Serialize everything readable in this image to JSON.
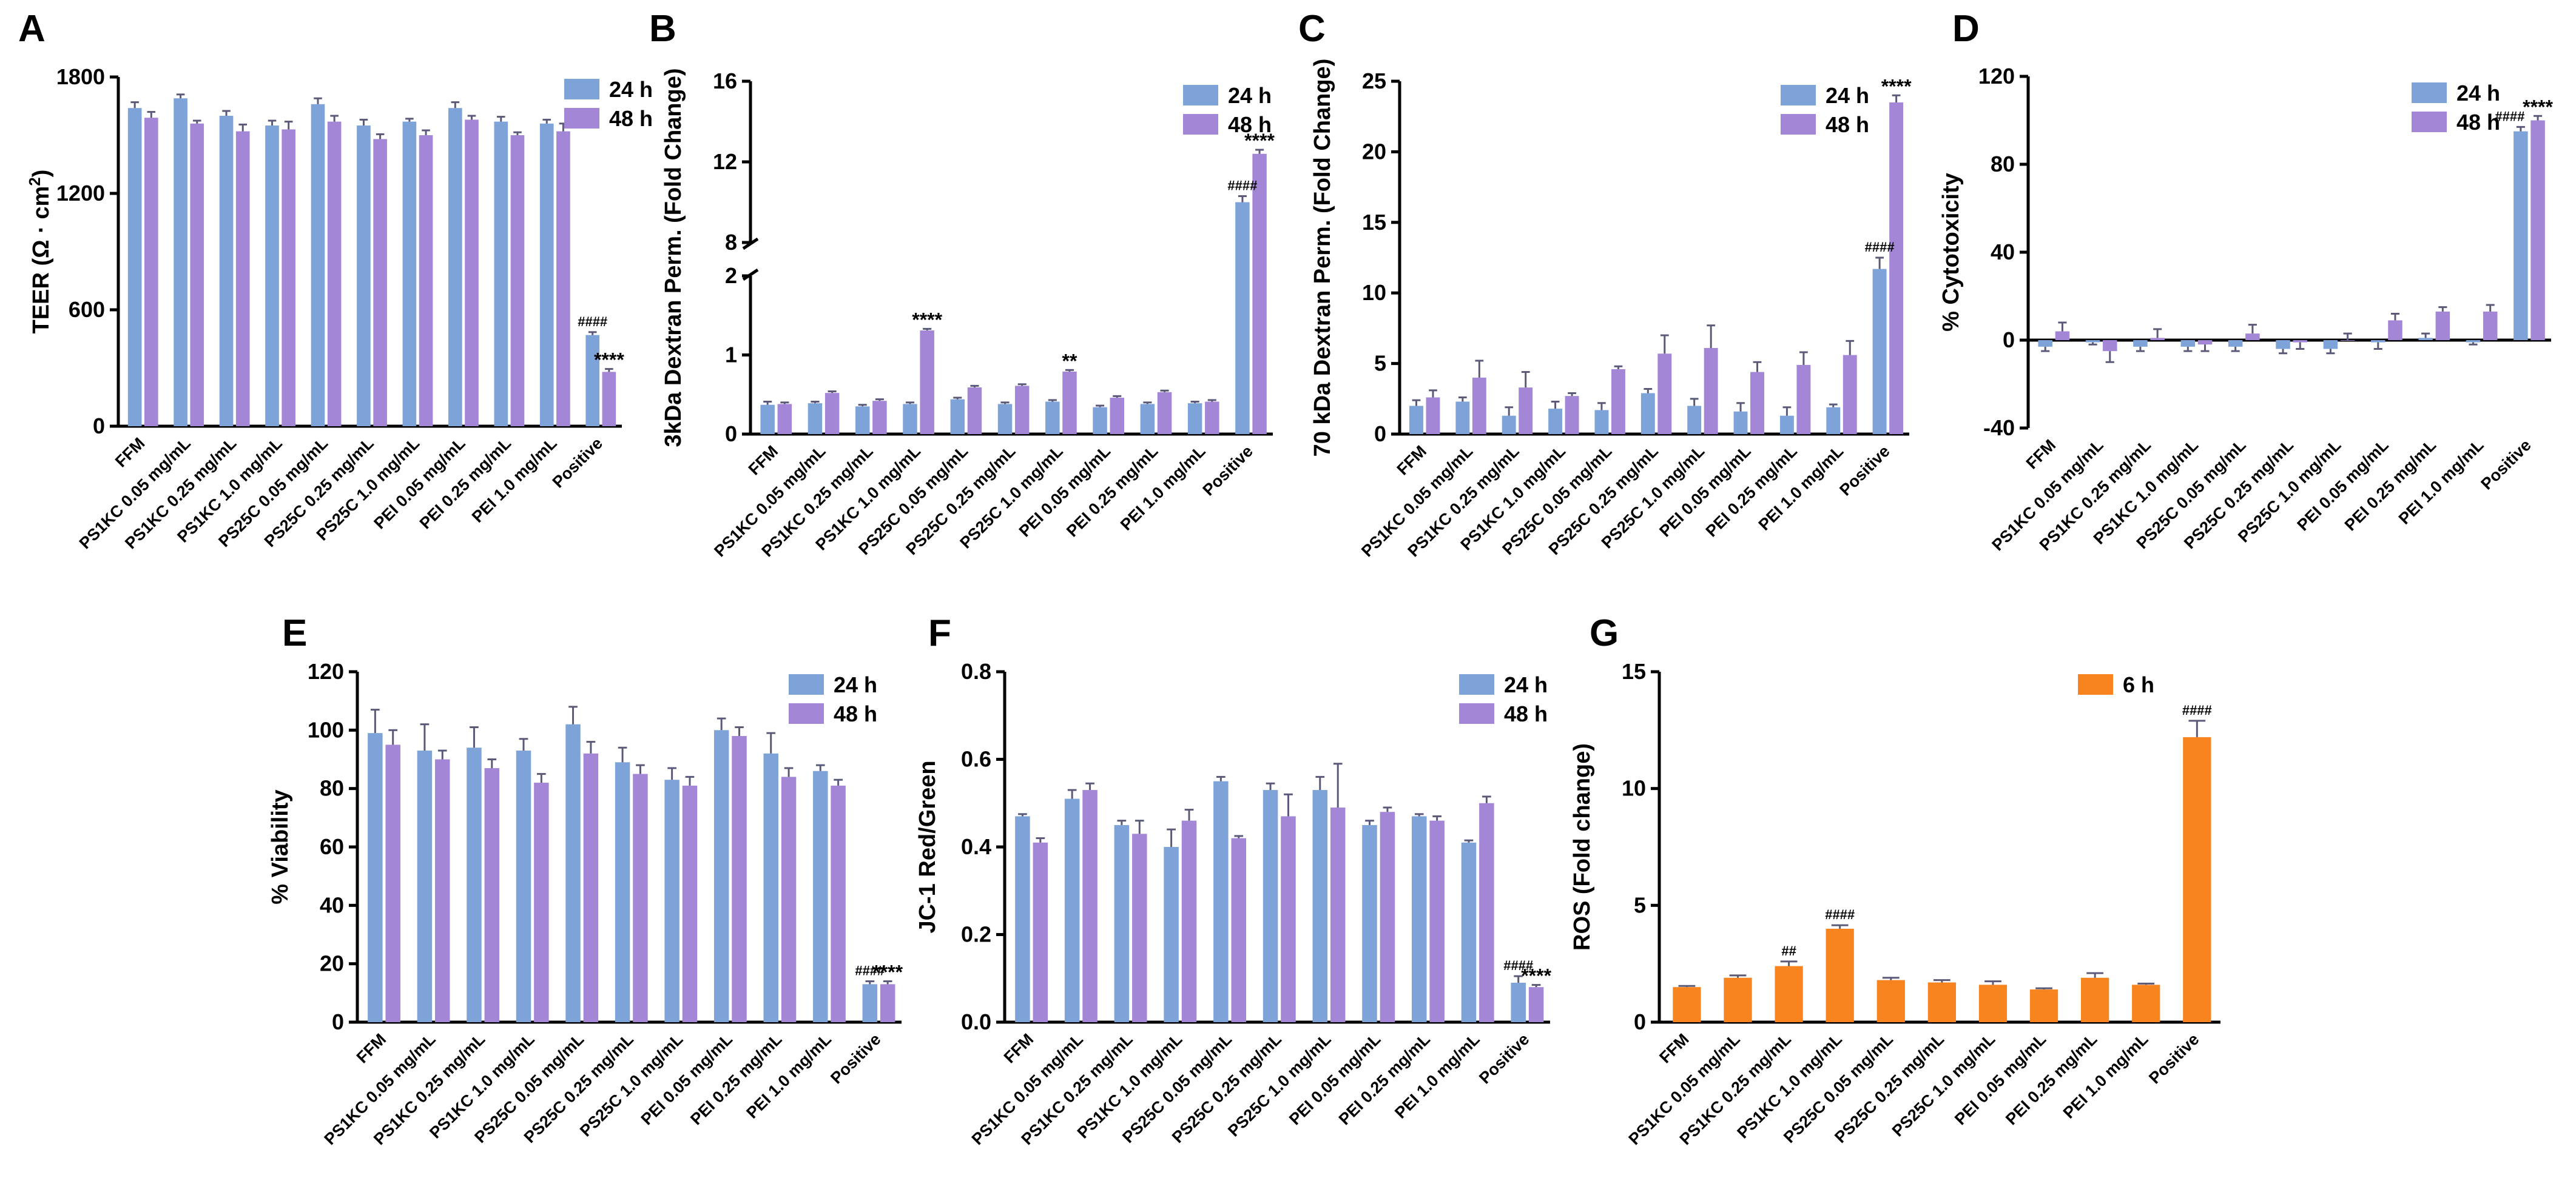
{
  "colors": {
    "h24": "#7ea3d9",
    "h48": "#a486d6",
    "h6": "#f7841e"
  },
  "chart_data": [
    {
      "panel": "A",
      "type": "bar",
      "ylabel": "TEER (Ω · cm²)",
      "ylim": [
        0,
        1800
      ],
      "yticks": [
        0,
        600,
        1200,
        1800
      ],
      "categories": [
        "FFM",
        "PS1KC 0.05 mg/mL",
        "PS1KC 0.25 mg/mL",
        "PS1KC 1.0 mg/mL",
        "PS25C 0.05 mg/mL",
        "PS25C 0.25 mg/mL",
        "PS25C 1.0 mg/mL",
        "PEI 0.05 mg/mL",
        "PEI 0.25 mg/mL",
        "PEI 1.0 mg/mL",
        "Positive"
      ],
      "series": [
        {
          "name": "24 h",
          "values": [
            1640,
            1690,
            1600,
            1550,
            1660,
            1550,
            1570,
            1640,
            1570,
            1560,
            470
          ],
          "errors": [
            30,
            20,
            25,
            25,
            30,
            30,
            15,
            30,
            25,
            20,
            15
          ]
        },
        {
          "name": "48 h",
          "values": [
            1590,
            1560,
            1520,
            1530,
            1570,
            1480,
            1500,
            1580,
            1500,
            1520,
            280
          ],
          "errors": [
            30,
            15,
            35,
            40,
            30,
            25,
            25,
            20,
            15,
            40,
            15
          ]
        }
      ],
      "annotations": [
        {
          "category": 10,
          "series": 0,
          "text": "####"
        },
        {
          "category": 10,
          "series": 1,
          "text": "****"
        }
      ],
      "legend": "top-right"
    },
    {
      "panel": "B",
      "type": "bar",
      "ylabel": "3kDa Dextran Perm. (Fold Change)",
      "ylim": [
        0,
        16
      ],
      "yticks": [
        0,
        1,
        2,
        8,
        12,
        16
      ],
      "axis_break": [
        2,
        8
      ],
      "categories": [
        "FFM",
        "PS1KC 0.05 mg/mL",
        "PS1KC 0.25 mg/mL",
        "PS1KC 1.0 mg/mL",
        "PS25C 0.05 mg/mL",
        "PS25C 0.25 mg/mL",
        "PS25C 1.0 mg/mL",
        "PEI 0.05 mg/mL",
        "PEI 0.25 mg/mL",
        "PEI 1.0 mg/mL",
        "Positive"
      ],
      "series": [
        {
          "name": "24 h",
          "values": [
            0.37,
            0.39,
            0.35,
            0.38,
            0.44,
            0.38,
            0.41,
            0.34,
            0.38,
            0.39,
            10.0
          ],
          "errors": [
            0.04,
            0.02,
            0.02,
            0.02,
            0.02,
            0.02,
            0.02,
            0.02,
            0.02,
            0.02,
            0.3
          ]
        },
        {
          "name": "48 h",
          "values": [
            0.38,
            0.52,
            0.42,
            1.31,
            0.59,
            0.61,
            0.79,
            0.46,
            0.53,
            0.41,
            12.4
          ],
          "errors": [
            0.02,
            0.02,
            0.02,
            0.02,
            0.02,
            0.02,
            0.02,
            0.02,
            0.02,
            0.02,
            0.2
          ]
        }
      ],
      "annotations": [
        {
          "category": 3,
          "series": 1,
          "text": "****"
        },
        {
          "category": 6,
          "series": 1,
          "text": "**"
        },
        {
          "category": 10,
          "series": 0,
          "text": "####"
        },
        {
          "category": 10,
          "series": 1,
          "text": "****"
        }
      ],
      "legend": "top-right"
    },
    {
      "panel": "C",
      "type": "bar",
      "ylabel": "70 kDa Dextran Perm. (Fold Change)",
      "ylim": [
        0,
        25
      ],
      "yticks": [
        0,
        5,
        10,
        15,
        20,
        25
      ],
      "categories": [
        "FFM",
        "PS1KC 0.05 mg/mL",
        "PS1KC 0.25 mg/mL",
        "PS1KC 1.0 mg/mL",
        "PS25C 0.05 mg/mL",
        "PS25C 0.25 mg/mL",
        "PS25C 1.0 mg/mL",
        "PEI 0.05 mg/mL",
        "PEI 0.25 mg/mL",
        "PEI 1.0 mg/mL",
        "Positive"
      ],
      "series": [
        {
          "name": "24 h",
          "values": [
            2.0,
            2.3,
            1.3,
            1.8,
            1.7,
            2.9,
            2.0,
            1.6,
            1.3,
            1.9,
            11.7
          ],
          "errors": [
            0.4,
            0.3,
            0.6,
            0.5,
            0.5,
            0.3,
            0.5,
            0.6,
            0.6,
            0.2,
            0.8
          ]
        },
        {
          "name": "48 h",
          "values": [
            2.6,
            4.0,
            3.3,
            2.7,
            4.6,
            5.7,
            6.1,
            4.4,
            4.9,
            5.6,
            23.5
          ],
          "errors": [
            0.5,
            1.2,
            1.1,
            0.2,
            0.2,
            1.3,
            1.6,
            0.7,
            0.9,
            1.0,
            0.5
          ]
        }
      ],
      "annotations": [
        {
          "category": 10,
          "series": 0,
          "text": "####"
        },
        {
          "category": 10,
          "series": 1,
          "text": "****"
        }
      ],
      "legend": "top-right"
    },
    {
      "panel": "D",
      "type": "bar",
      "ylabel": "% Cytotoxicity",
      "ylim": [
        -40,
        120
      ],
      "yticks": [
        -40,
        0,
        40,
        80,
        120
      ],
      "categories": [
        "FFM",
        "PS1KC 0.05 mg/mL",
        "PS1KC 0.25 mg/mL",
        "PS1KC 1.0 mg/mL",
        "PS25C 0.05 mg/mL",
        "PS25C 0.25 mg/mL",
        "PS25C 1.0 mg/mL",
        "PEI 0.05 mg/mL",
        "PEI 0.25 mg/mL",
        "PEI 1.0 mg/mL",
        "Positive"
      ],
      "series": [
        {
          "name": "24 h",
          "values": [
            -3,
            -1,
            -3,
            -3,
            -3,
            -4,
            -4,
            -1,
            1,
            -1,
            95
          ],
          "errors": [
            2,
            1,
            2,
            2,
            2,
            2,
            2,
            3,
            2,
            1,
            2
          ]
        },
        {
          "name": "48 h",
          "values": [
            4,
            -5,
            1,
            -2,
            3,
            -1,
            0,
            9,
            13,
            13,
            100
          ],
          "errors": [
            4,
            5,
            4,
            3,
            4,
            3,
            3,
            3,
            2,
            3,
            2
          ]
        }
      ],
      "annotations": [
        {
          "category": 10,
          "series": 0,
          "text": "####"
        },
        {
          "category": 10,
          "series": 1,
          "text": "****"
        }
      ],
      "legend": "top-right"
    },
    {
      "panel": "E",
      "type": "bar",
      "ylabel": "% Viability",
      "ylim": [
        0,
        120
      ],
      "yticks": [
        0,
        20,
        40,
        60,
        80,
        100,
        120
      ],
      "categories": [
        "FFM",
        "PS1KC 0.05 mg/mL",
        "PS1KC 0.25 mg/mL",
        "PS1KC 1.0 mg/mL",
        "PS25C 0.05 mg/mL",
        "PS25C 0.25 mg/mL",
        "PS25C 1.0 mg/mL",
        "PEI 0.05 mg/mL",
        "PEI 0.25 mg/mL",
        "PEI 1.0 mg/mL",
        "Positive"
      ],
      "series": [
        {
          "name": "24 h",
          "values": [
            99,
            93,
            94,
            93,
            102,
            89,
            83,
            100,
            92,
            86,
            13
          ],
          "errors": [
            8,
            9,
            7,
            4,
            6,
            5,
            4,
            4,
            7,
            2,
            1
          ]
        },
        {
          "name": "48 h",
          "values": [
            95,
            90,
            87,
            82,
            92,
            85,
            81,
            98,
            84,
            81,
            13
          ],
          "errors": [
            5,
            3,
            3,
            3,
            4,
            3,
            3,
            3,
            3,
            2,
            1
          ]
        }
      ],
      "annotations": [
        {
          "category": 10,
          "series": 0,
          "text": "####"
        },
        {
          "category": 10,
          "series": 1,
          "text": "****"
        }
      ],
      "legend": "top-right"
    },
    {
      "panel": "F",
      "type": "bar",
      "ylabel": "JC-1 Red/Green",
      "ylim": [
        0,
        0.8
      ],
      "yticks": [
        0.0,
        0.2,
        0.4,
        0.6,
        0.8
      ],
      "categories": [
        "FFM",
        "PS1KC 0.05 mg/mL",
        "PS1KC 0.25 mg/mL",
        "PS1KC 1.0 mg/mL",
        "PS25C 0.05 mg/mL",
        "PS25C 0.25 mg/mL",
        "PS25C 1.0 mg/mL",
        "PEI 0.05 mg/mL",
        "PEI 0.25 mg/mL",
        "PEI 1.0 mg/mL",
        "Positive"
      ],
      "series": [
        {
          "name": "24 h",
          "values": [
            0.47,
            0.51,
            0.45,
            0.4,
            0.55,
            0.53,
            0.53,
            0.45,
            0.47,
            0.41,
            0.09
          ],
          "errors": [
            0.005,
            0.02,
            0.01,
            0.04,
            0.01,
            0.015,
            0.03,
            0.01,
            0.005,
            0.005,
            0.015
          ]
        },
        {
          "name": "48 h",
          "values": [
            0.41,
            0.53,
            0.43,
            0.46,
            0.42,
            0.47,
            0.49,
            0.48,
            0.46,
            0.5,
            0.08
          ],
          "errors": [
            0.01,
            0.015,
            0.03,
            0.025,
            0.005,
            0.05,
            0.1,
            0.01,
            0.01,
            0.015,
            0.005
          ]
        }
      ],
      "annotations": [
        {
          "category": 10,
          "series": 0,
          "text": "####"
        },
        {
          "category": 10,
          "series": 1,
          "text": "****"
        }
      ],
      "legend": "top-right"
    },
    {
      "panel": "G",
      "type": "bar",
      "ylabel": "ROS (Fold change)",
      "ylim": [
        0,
        15
      ],
      "yticks": [
        0,
        5,
        10,
        15
      ],
      "categories": [
        "FFM",
        "PS1KC 0.05 mg/mL",
        "PS1KC 0.25 mg/mL",
        "PS1KC 1.0 mg/mL",
        "PS25C 0.05 mg/mL",
        "PS25C 0.25 mg/mL",
        "PS25C 1.0 mg/mL",
        "PEI 0.05 mg/mL",
        "PEI 0.25 mg/mL",
        "PEI 1.0 mg/mL",
        "Positive"
      ],
      "series": [
        {
          "name": "6 h",
          "values": [
            1.5,
            1.9,
            2.4,
            4.0,
            1.8,
            1.7,
            1.6,
            1.4,
            1.9,
            1.6,
            12.2
          ],
          "errors": [
            0.05,
            0.1,
            0.2,
            0.15,
            0.1,
            0.1,
            0.15,
            0.05,
            0.2,
            0.05,
            0.7
          ]
        }
      ],
      "annotations": [
        {
          "category": 2,
          "series": 0,
          "text": "##"
        },
        {
          "category": 3,
          "series": 0,
          "text": "####"
        },
        {
          "category": 10,
          "series": 0,
          "text": "####"
        }
      ],
      "legend": "top-center"
    }
  ]
}
